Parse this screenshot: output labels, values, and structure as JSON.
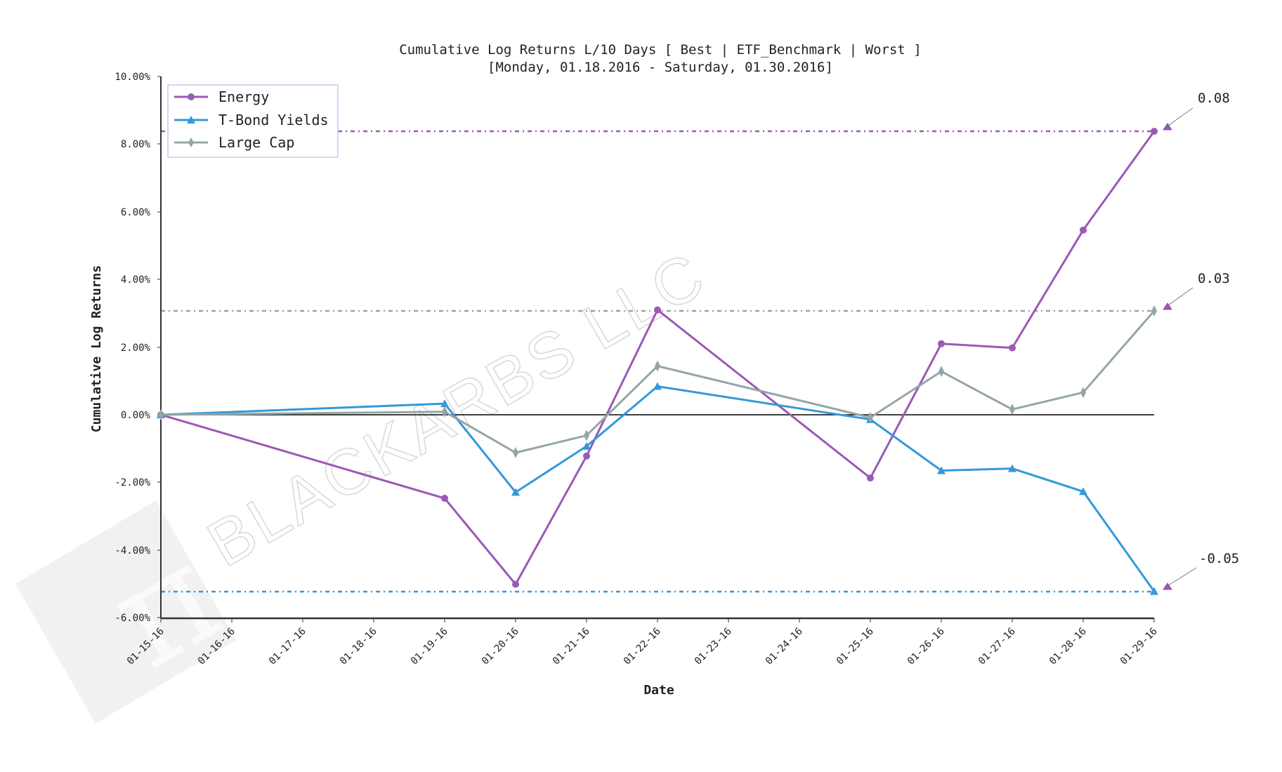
{
  "chart_data": {
    "type": "line",
    "title": "Cumulative Log Returns L/10 Days [ Best | ETF_Benchmark | Worst ]",
    "subtitle": "[Monday, 01.18.2016 - Saturday, 01.30.2016]",
    "xlabel": "Date",
    "ylabel": "Cumulative Log Returns",
    "ylim": [
      -0.06,
      0.1
    ],
    "yticks": [
      "10.00%",
      "8.00%",
      "6.00%",
      "4.00%",
      "2.00%",
      "0.00%",
      "-2.00%",
      "-4.00%",
      "-6.00%"
    ],
    "ytick_values": [
      10,
      8,
      6,
      4,
      2,
      0,
      -2,
      -4,
      -6
    ],
    "xticks": [
      "01-15-16",
      "01-16-16",
      "01-17-16",
      "01-18-16",
      "01-19-16",
      "01-20-16",
      "01-21-16",
      "01-22-16",
      "01-23-16",
      "01-24-16",
      "01-25-16",
      "01-26-16",
      "01-27-16",
      "01-28-16",
      "01-29-16"
    ],
    "x": [
      "01-15-16",
      "01-19-16",
      "01-20-16",
      "01-21-16",
      "01-22-16",
      "01-25-16",
      "01-26-16",
      "01-27-16",
      "01-28-16",
      "01-29-16"
    ],
    "x_day_index": [
      0,
      4,
      5,
      6,
      7,
      10,
      11,
      12,
      13,
      14
    ],
    "series": [
      {
        "name": "Energy",
        "color": "#9b59b6",
        "marker": "circle",
        "values": [
          0.0,
          -2.47,
          -5.01,
          -1.22,
          3.1,
          -1.87,
          2.1,
          1.98,
          5.46,
          8.38
        ]
      },
      {
        "name": "T-Bond Yields",
        "color": "#3498db",
        "marker": "triangle",
        "values": [
          0.0,
          0.33,
          -2.29,
          -0.93,
          0.84,
          -0.14,
          -1.65,
          -1.59,
          -2.27,
          -5.22
        ]
      },
      {
        "name": "Large Cap",
        "color": "#95a5a6",
        "marker": "thin_diamond",
        "values": [
          0.0,
          0.09,
          -1.12,
          -0.61,
          1.44,
          -0.08,
          1.28,
          0.16,
          0.66,
          3.07
        ]
      }
    ],
    "hlines": [
      {
        "series": "Energy",
        "value": 8.38,
        "color": "#9b59b6",
        "style": "dashdot"
      },
      {
        "series": "Large Cap",
        "value": 3.07,
        "color": "#95a5a6",
        "style": "dashdot"
      },
      {
        "series": "T-Bond Yields",
        "value": -5.22,
        "color": "#3498db",
        "style": "dashdot"
      }
    ],
    "annotations": [
      {
        "text": "0.08",
        "series": "Energy",
        "value": 8.38
      },
      {
        "text": "0.03",
        "series": "Large Cap",
        "value": 3.07
      },
      {
        "text": "-0.05",
        "series": "T-Bond Yields",
        "value": -5.22
      }
    ],
    "legend": {
      "position": "upper left",
      "entries": [
        "Energy",
        "T-Bond Yields",
        "Large Cap"
      ]
    },
    "grid": false,
    "watermark": "BLACKARBS LLC"
  }
}
